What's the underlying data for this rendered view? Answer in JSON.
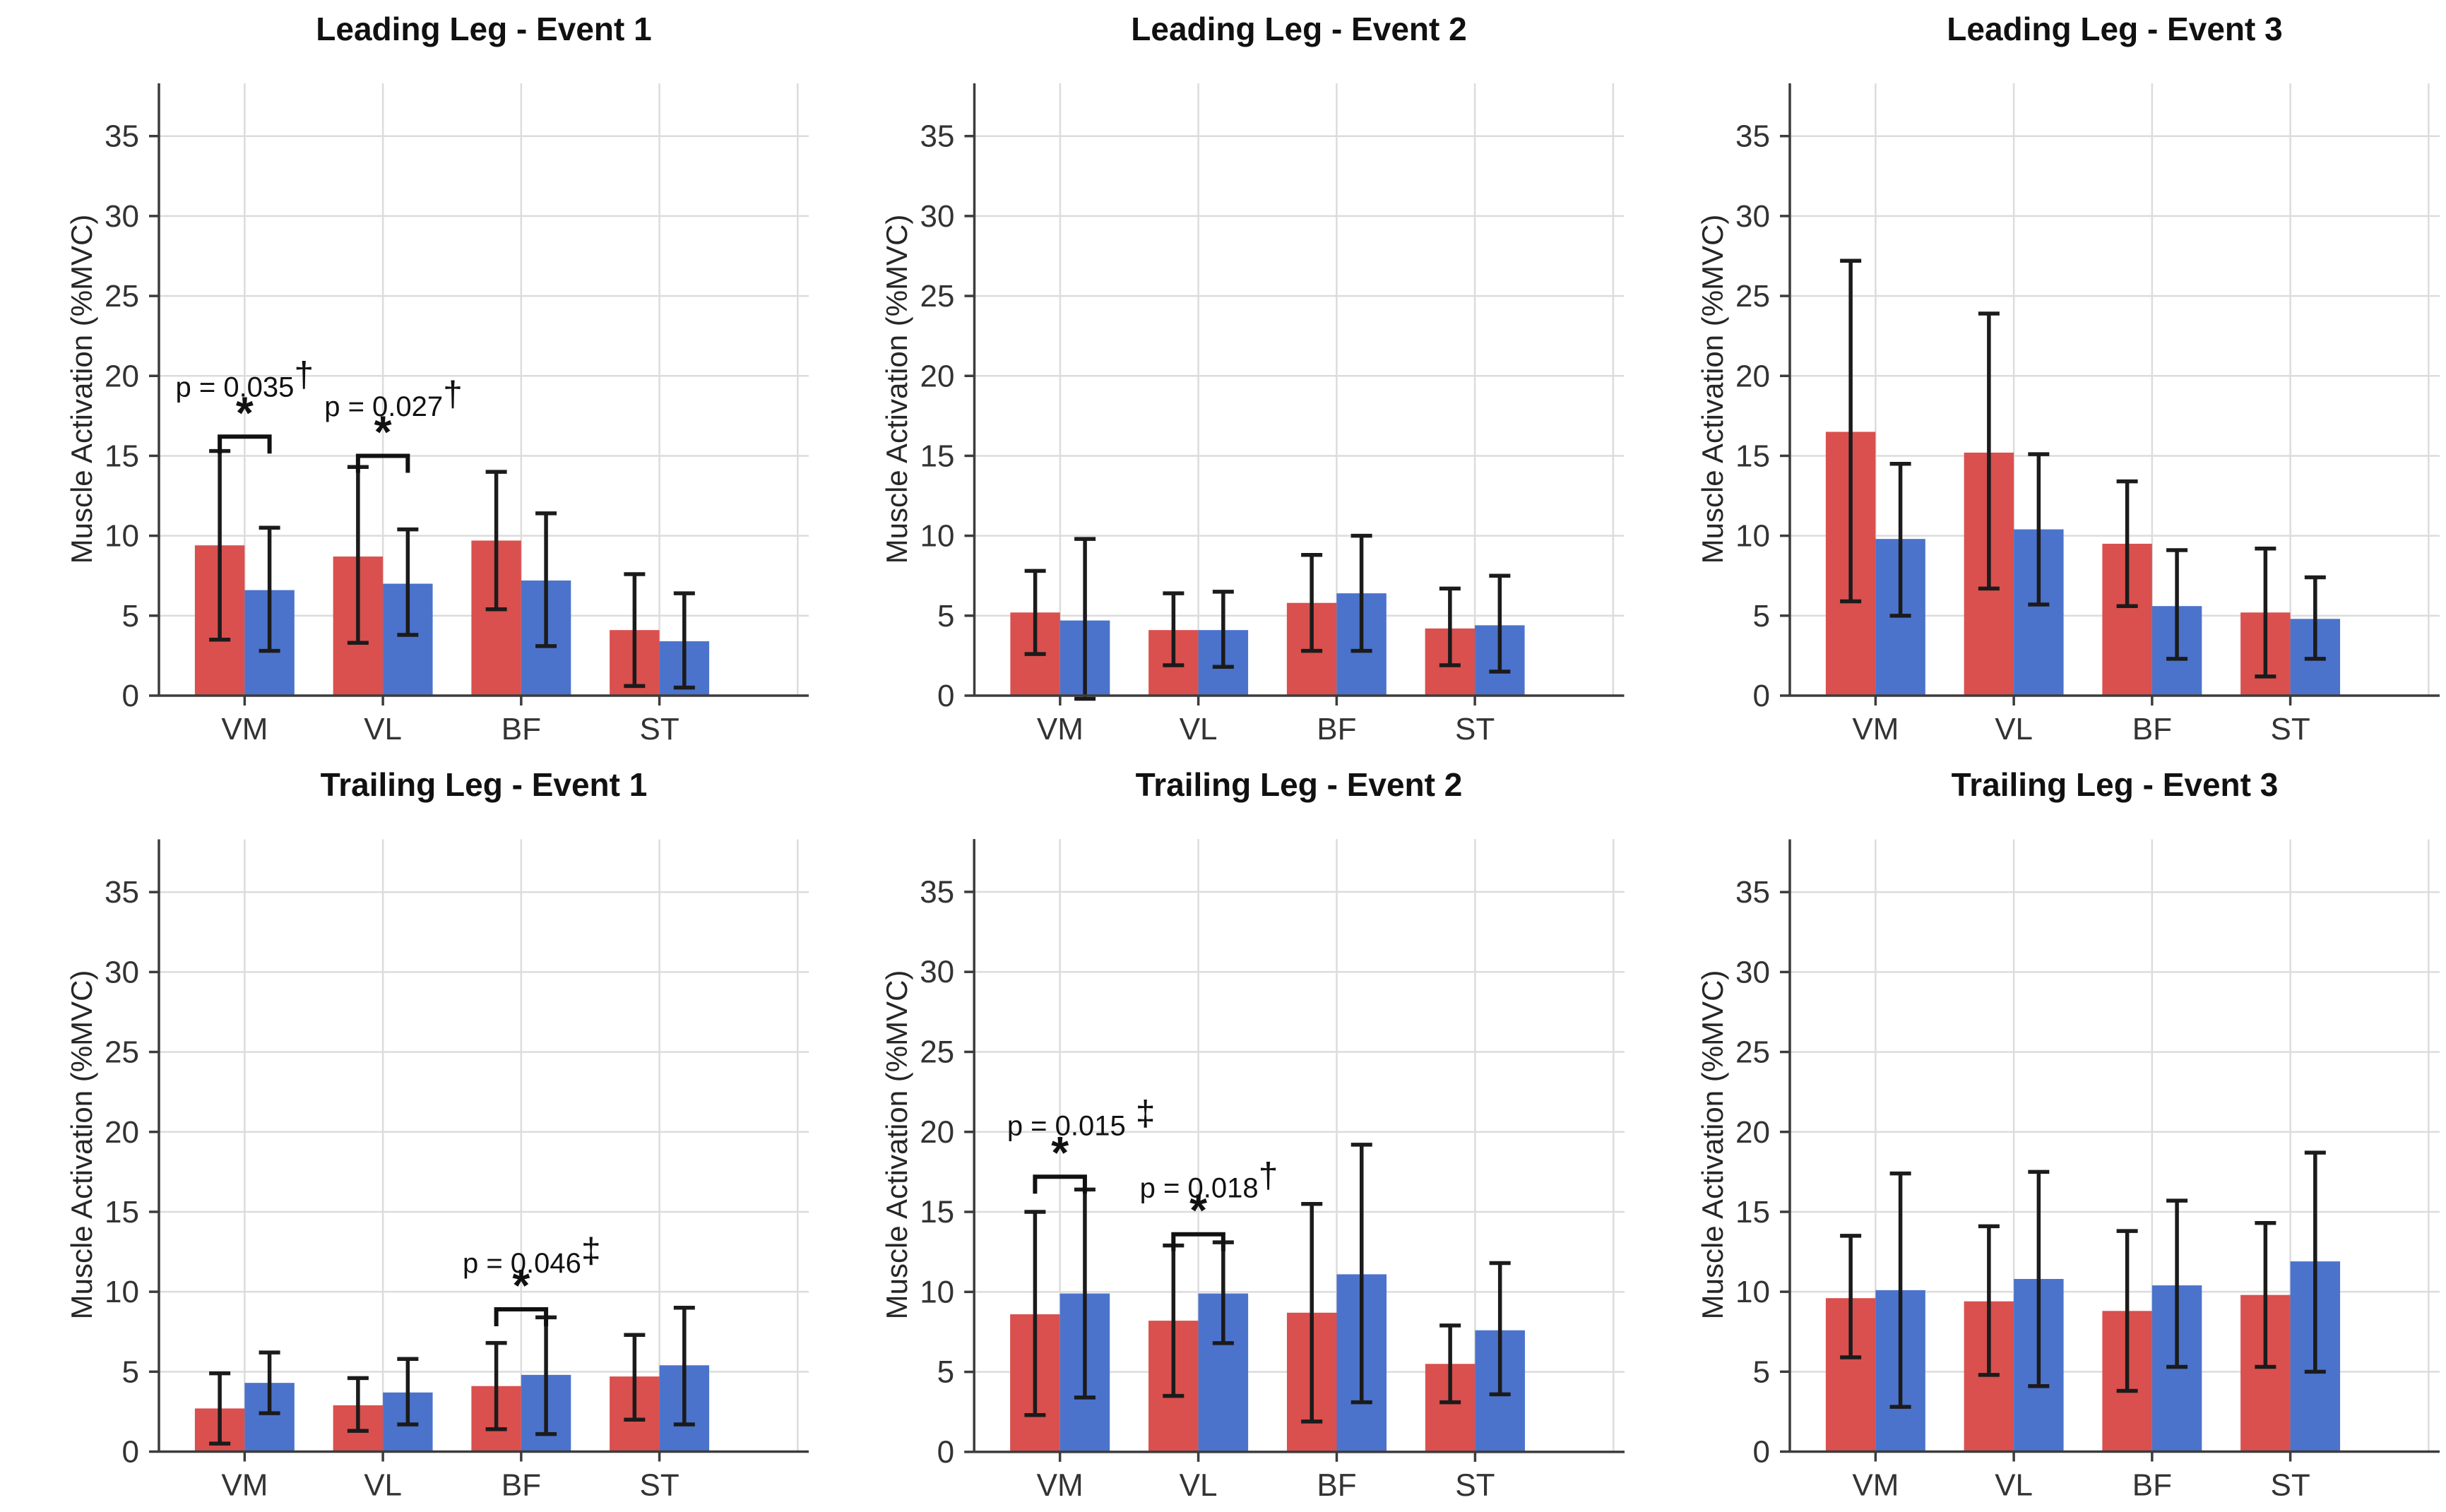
{
  "style": {
    "red": "#D9504E",
    "blue": "#4B73CC",
    "grid": "#DCDCDC",
    "axis": "#3C3C3C",
    "error": "#1B1B1B",
    "text": "#333333",
    "annotation": "#111111",
    "background": "#FFFFFF"
  },
  "figure": {
    "ylabel": "Muscle Activation (%MVC)",
    "rows": [
      "Leading Leg",
      "Trailing Leg"
    ],
    "events": [
      "Event 1",
      "Event 2",
      "Event 3"
    ],
    "muscles": [
      "VM",
      "VL",
      "BF",
      "ST"
    ]
  },
  "chart_data": [
    {
      "type": "bar",
      "title": "Leading Leg - Event 1",
      "xlabel": "",
      "ylabel": "Muscle Activation (%MVC)",
      "categories": [
        "VM",
        "VL",
        "BF",
        "ST"
      ],
      "ylim": [
        0,
        38.3
      ],
      "yticks": [
        0,
        5,
        10,
        15,
        20,
        25,
        30,
        35
      ],
      "grid": true,
      "legend": "none",
      "series": [
        {
          "name": "red",
          "values": [
            9.4,
            8.7,
            9.7,
            4.1
          ],
          "err_lo": [
            3.5,
            3.3,
            5.4,
            0.6
          ],
          "err_hi": [
            15.3,
            14.3,
            14.0,
            7.6
          ]
        },
        {
          "name": "blue",
          "values": [
            6.6,
            7.0,
            7.2,
            3.4
          ],
          "err_lo": [
            2.8,
            3.8,
            3.1,
            0.5
          ],
          "err_hi": [
            10.5,
            10.4,
            11.4,
            6.4
          ]
        }
      ],
      "annotations": [
        {
          "cat": 0,
          "label": "p = 0.035",
          "symbol": "†",
          "star": "*",
          "bracket_y": 16.2,
          "text_y": 18.7,
          "dx": 0
        },
        {
          "cat": 1,
          "label": "p = 0.027",
          "symbol": "†",
          "star": "*",
          "bracket_y": 15.0,
          "text_y": 17.5,
          "dx": 15
        }
      ]
    },
    {
      "type": "bar",
      "title": "Leading Leg - Event 2",
      "xlabel": "",
      "ylabel": "Muscle Activation (%MVC)",
      "categories": [
        "VM",
        "VL",
        "BF",
        "ST"
      ],
      "ylim": [
        0,
        38.3
      ],
      "yticks": [
        0,
        5,
        10,
        15,
        20,
        25,
        30,
        35
      ],
      "grid": true,
      "legend": "none",
      "series": [
        {
          "name": "red",
          "values": [
            5.2,
            4.1,
            5.8,
            4.2
          ],
          "err_lo": [
            2.6,
            1.9,
            2.8,
            1.9
          ],
          "err_hi": [
            7.8,
            6.4,
            8.8,
            6.7
          ]
        },
        {
          "name": "blue",
          "values": [
            4.7,
            4.1,
            6.4,
            4.4
          ],
          "err_lo": [
            -0.2,
            1.8,
            2.8,
            1.5
          ],
          "err_hi": [
            9.8,
            6.5,
            10.0,
            7.5
          ]
        }
      ],
      "annotations": []
    },
    {
      "type": "bar",
      "title": "Leading Leg - Event 3",
      "xlabel": "",
      "ylabel": "Muscle Activation (%MVC)",
      "categories": [
        "VM",
        "VL",
        "BF",
        "ST"
      ],
      "ylim": [
        0,
        38.3
      ],
      "yticks": [
        0,
        5,
        10,
        15,
        20,
        25,
        30,
        35
      ],
      "grid": true,
      "legend": "none",
      "series": [
        {
          "name": "red",
          "values": [
            16.5,
            15.2,
            9.5,
            5.2
          ],
          "err_lo": [
            5.9,
            6.7,
            5.6,
            1.2
          ],
          "err_hi": [
            27.2,
            23.9,
            13.4,
            9.2
          ]
        },
        {
          "name": "blue",
          "values": [
            9.8,
            10.4,
            5.6,
            4.8
          ],
          "err_lo": [
            5.0,
            5.7,
            2.3,
            2.3
          ],
          "err_hi": [
            14.5,
            15.1,
            9.1,
            7.4
          ]
        }
      ],
      "annotations": []
    },
    {
      "type": "bar",
      "title": "Trailing Leg - Event 1",
      "xlabel": "",
      "ylabel": "Muscle Activation (%MVC)",
      "categories": [
        "VM",
        "VL",
        "BF",
        "ST"
      ],
      "ylim": [
        0,
        38.3
      ],
      "yticks": [
        0,
        5,
        10,
        15,
        20,
        25,
        30,
        35
      ],
      "grid": true,
      "legend": "none",
      "series": [
        {
          "name": "red",
          "values": [
            2.7,
            2.9,
            4.1,
            4.7
          ],
          "err_lo": [
            0.5,
            1.3,
            1.4,
            2.0
          ],
          "err_hi": [
            4.9,
            4.6,
            6.8,
            7.3
          ]
        },
        {
          "name": "blue",
          "values": [
            4.3,
            3.7,
            4.8,
            5.4
          ],
          "err_lo": [
            2.4,
            1.7,
            1.1,
            1.7
          ],
          "err_hi": [
            6.2,
            5.8,
            8.4,
            9.0
          ]
        }
      ],
      "annotations": [
        {
          "cat": 2,
          "label": "p = 0.046",
          "symbol": "‡",
          "star": "*",
          "bracket_y": 8.9,
          "text_y": 11.2,
          "dx": 15
        }
      ]
    },
    {
      "type": "bar",
      "title": "Trailing Leg - Event 2",
      "xlabel": "",
      "ylabel": "Muscle Activation (%MVC)",
      "categories": [
        "VM",
        "VL",
        "BF",
        "ST"
      ],
      "ylim": [
        0,
        38.3
      ],
      "yticks": [
        0,
        5,
        10,
        15,
        20,
        25,
        30,
        35
      ],
      "grid": true,
      "legend": "none",
      "series": [
        {
          "name": "red",
          "values": [
            8.6,
            8.2,
            8.7,
            5.5
          ],
          "err_lo": [
            2.3,
            3.5,
            1.9,
            3.1
          ],
          "err_hi": [
            15.0,
            12.9,
            15.5,
            7.9
          ]
        },
        {
          "name": "blue",
          "values": [
            9.9,
            9.9,
            11.1,
            7.6
          ],
          "err_lo": [
            3.4,
            6.8,
            3.1,
            3.6
          ],
          "err_hi": [
            16.4,
            13.1,
            19.2,
            11.8
          ]
        }
      ],
      "annotations": [
        {
          "cat": 0,
          "label": "p = 0.015",
          "symbol": " ‡",
          "star": "*",
          "bracket_y": 17.2,
          "text_y": 19.8,
          "dx": 30
        },
        {
          "cat": 1,
          "label": "p = 0.018",
          "symbol": "†",
          "star": "*",
          "bracket_y": 13.6,
          "text_y": 15.9,
          "dx": 15
        }
      ]
    },
    {
      "type": "bar",
      "title": "Trailing Leg - Event 3",
      "xlabel": "",
      "ylabel": "Muscle Activation (%MVC)",
      "categories": [
        "VM",
        "VL",
        "BF",
        "ST"
      ],
      "ylim": [
        0,
        38.3
      ],
      "yticks": [
        0,
        5,
        10,
        15,
        20,
        25,
        30,
        35
      ],
      "grid": true,
      "legend": "none",
      "series": [
        {
          "name": "red",
          "values": [
            9.6,
            9.4,
            8.8,
            9.8
          ],
          "err_lo": [
            5.9,
            4.8,
            3.8,
            5.3
          ],
          "err_hi": [
            13.5,
            14.1,
            13.8,
            14.3
          ]
        },
        {
          "name": "blue",
          "values": [
            10.1,
            10.8,
            10.4,
            11.9
          ],
          "err_lo": [
            2.8,
            4.1,
            5.3,
            5.0
          ],
          "err_hi": [
            17.4,
            17.5,
            15.7,
            18.7
          ]
        }
      ],
      "annotations": []
    }
  ]
}
